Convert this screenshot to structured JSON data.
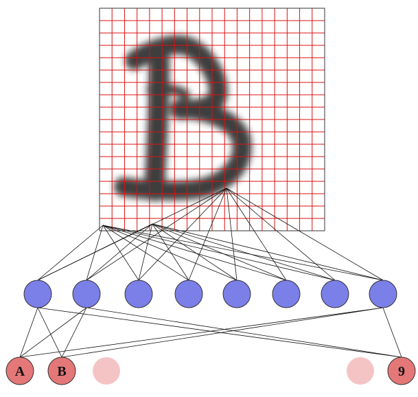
{
  "input_image": {
    "glyph": "B",
    "grid_rows": 18,
    "grid_cols": 18,
    "grid_color": "#dd1111",
    "ink_color": "#2a2a2a"
  },
  "hidden_layer": {
    "node_count": 8,
    "fill": "#7b7fe8",
    "stroke": "#333333"
  },
  "output_layer": {
    "nodes": [
      {
        "label": "A",
        "active": true
      },
      {
        "label": "B",
        "active": true
      },
      {
        "label": "",
        "active": false
      },
      {
        "label": "",
        "active": false
      },
      {
        "label": "9",
        "active": true
      }
    ],
    "active_fill": "#e47777",
    "inactive_fill": "#f4c4c4",
    "label_color": "#111111"
  },
  "edge_color": "#111111"
}
